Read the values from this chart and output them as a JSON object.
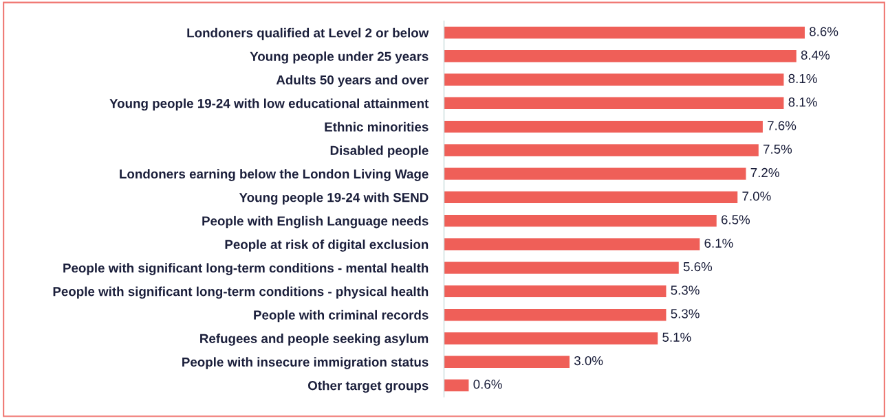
{
  "chart_data": {
    "type": "bar",
    "orientation": "horizontal",
    "color": "#ef5f58",
    "data_labels": true,
    "categories": [
      "Londoners qualified at Level 2 or below",
      "Young people under 25 years",
      "Adults 50 years and over",
      "Young people 19-24 with low educational attainment",
      "Ethnic minorities",
      "Disabled people",
      "Londoners earning below the London Living Wage",
      "Young people 19-24 with SEND",
      "People with English Language needs",
      "People at risk of digital exclusion",
      "People with significant long-term conditions - mental health",
      "People with significant long-term conditions - physical health",
      "People with criminal records",
      "Refugees and people seeking asylum",
      "People with insecure immigration status",
      "Other target groups"
    ],
    "values": [
      8.6,
      8.4,
      8.1,
      8.1,
      7.6,
      7.5,
      7.2,
      7.0,
      6.5,
      6.1,
      5.6,
      5.3,
      5.3,
      5.1,
      3.0,
      0.6
    ],
    "value_labels": [
      "8.6%",
      "8.4%",
      "8.1%",
      "8.1%",
      "7.6%",
      "7.5%",
      "7.2%",
      "7.0%",
      "6.5%",
      "6.1%",
      "5.6%",
      "5.3%",
      "5.3%",
      "5.1%",
      "3.0%",
      "0.6%"
    ],
    "grid": false,
    "legend": false
  }
}
